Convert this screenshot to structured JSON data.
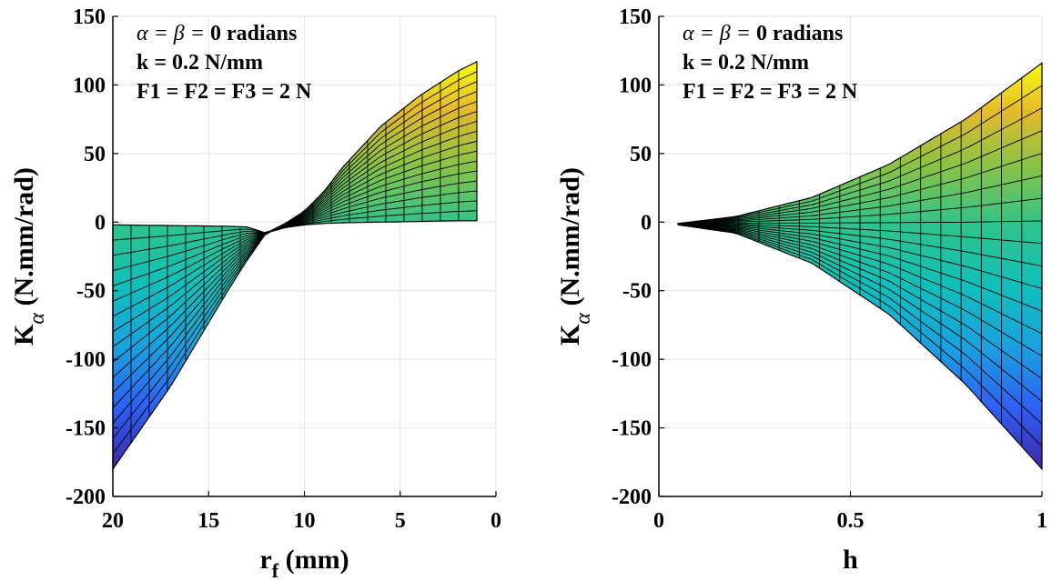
{
  "chart_data": [
    {
      "type": "surface",
      "xlabel": "r",
      "xlabel_sub": "f",
      "xlabel_unit": " (mm)",
      "ylabel": "K",
      "ylabel_sub": "α",
      "ylabel_unit": " (N.mm/rad)",
      "xlim": [
        20,
        0
      ],
      "ylim": [
        -200,
        150
      ],
      "xticks": [
        "20",
        "15",
        "10",
        "5",
        "0"
      ],
      "yticks": [
        "150",
        "100",
        "50",
        "0",
        "-50",
        "-100",
        "-150",
        "-200"
      ],
      "grid": true,
      "colormap": "parula",
      "annotations": [
        {
          "italic_part": "α = β = ",
          "text": "0 radians"
        },
        {
          "italic_part": "",
          "text": "k = 0.2 N/mm"
        },
        {
          "italic_part": "",
          "text": "F1 = F2 = F3 = 2 N"
        }
      ],
      "curves": [
        {
          "name": "upper-envelope",
          "x": [
            20,
            17,
            14,
            13,
            12,
            11,
            10,
            9,
            8,
            6,
            4,
            2,
            1
          ],
          "y": [
            -2,
            -2.5,
            -3,
            -3.5,
            -8,
            -1,
            8,
            22,
            40,
            70,
            92,
            110,
            117
          ]
        },
        {
          "name": "lower-envelope",
          "x": [
            20,
            17,
            14,
            13,
            12,
            11,
            10,
            9,
            8,
            6,
            4,
            2,
            1
          ],
          "y": [
            -180,
            -120,
            -50,
            -28,
            -8,
            -4,
            -2,
            -1,
            -0.5,
            0,
            0.5,
            1,
            1
          ]
        }
      ],
      "mesh_rows": 16,
      "mesh_cols": 20
    },
    {
      "type": "surface",
      "xlabel": "h",
      "xlabel_sub": "",
      "xlabel_unit": "",
      "ylabel": "K",
      "ylabel_sub": "α",
      "ylabel_unit": " (N.mm/rad)",
      "xlim": [
        0,
        1
      ],
      "ylim": [
        -200,
        150
      ],
      "xticks": [
        "0",
        "0.5",
        "1"
      ],
      "yticks": [
        "150",
        "100",
        "50",
        "0",
        "-50",
        "-100",
        "-150",
        "-200"
      ],
      "grid": true,
      "colormap": "parula",
      "annotations": [
        {
          "italic_part": "α = β = ",
          "text": "0 radians"
        },
        {
          "italic_part": "",
          "text": "k = 0.2 N/mm"
        },
        {
          "italic_part": "",
          "text": "F1 = F2 = F3 = 2 N"
        }
      ],
      "curves": [
        {
          "name": "upper-envelope",
          "x": [
            0.05,
            0.2,
            0.4,
            0.6,
            0.8,
            1.0
          ],
          "y": [
            -1,
            4,
            18,
            42,
            75,
            116
          ]
        },
        {
          "name": "lower-envelope",
          "x": [
            0.05,
            0.2,
            0.4,
            0.6,
            0.8,
            1.0
          ],
          "y": [
            -2,
            -8,
            -30,
            -67,
            -118,
            -180
          ]
        }
      ],
      "mesh_rows": 18,
      "mesh_cols": 18
    }
  ]
}
